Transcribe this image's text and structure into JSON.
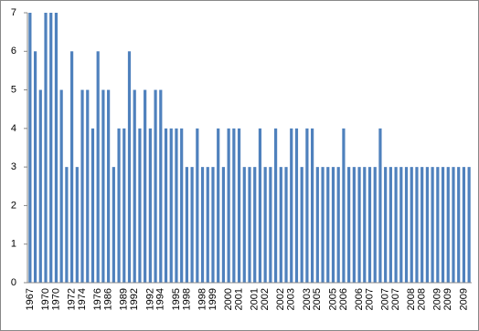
{
  "chart_data": {
    "type": "bar",
    "color": "#4f81bd",
    "categories": [
      "1967",
      null,
      null,
      "1970",
      null,
      "1970",
      null,
      null,
      "1972",
      null,
      "1974",
      null,
      null,
      "1976",
      null,
      "1986",
      null,
      null,
      "1989",
      null,
      "1992",
      null,
      null,
      "1992",
      null,
      "1994",
      null,
      null,
      "1995",
      null,
      "1998",
      null,
      null,
      "1998",
      null,
      "1999",
      null,
      null,
      "2000",
      null,
      "2001",
      null,
      null,
      "2001",
      null,
      "2002",
      null,
      null,
      "2002",
      null,
      "2003",
      null,
      null,
      "2003",
      null,
      "2005",
      null,
      null,
      "2005",
      null,
      "2006",
      null,
      null,
      "2006",
      null,
      "2007",
      null,
      null,
      "2007",
      null,
      "2007",
      null,
      null,
      "2008",
      null,
      "2008",
      null,
      null,
      "2009",
      null,
      "2009",
      null,
      null,
      "2009",
      null
    ],
    "values": [
      7,
      6,
      5,
      7,
      7,
      7,
      5,
      3,
      6,
      3,
      5,
      5,
      4,
      6,
      5,
      5,
      3,
      4,
      4,
      6,
      5,
      4,
      5,
      4,
      5,
      5,
      4,
      4,
      4,
      4,
      3,
      3,
      4,
      3,
      3,
      3,
      4,
      3,
      4,
      4,
      4,
      3,
      3,
      3,
      4,
      3,
      3,
      4,
      3,
      3,
      4,
      4,
      3,
      4,
      4,
      3,
      3,
      3,
      3,
      3,
      4,
      3,
      3,
      3,
      3,
      3,
      3,
      4,
      3,
      3,
      3,
      3,
      3,
      3,
      3,
      3,
      3,
      3,
      3,
      3,
      3,
      3,
      3,
      3,
      3
    ],
    "ylim": [
      0,
      7
    ],
    "yticks": [
      0,
      1,
      2,
      3,
      4,
      5,
      6,
      7
    ]
  }
}
